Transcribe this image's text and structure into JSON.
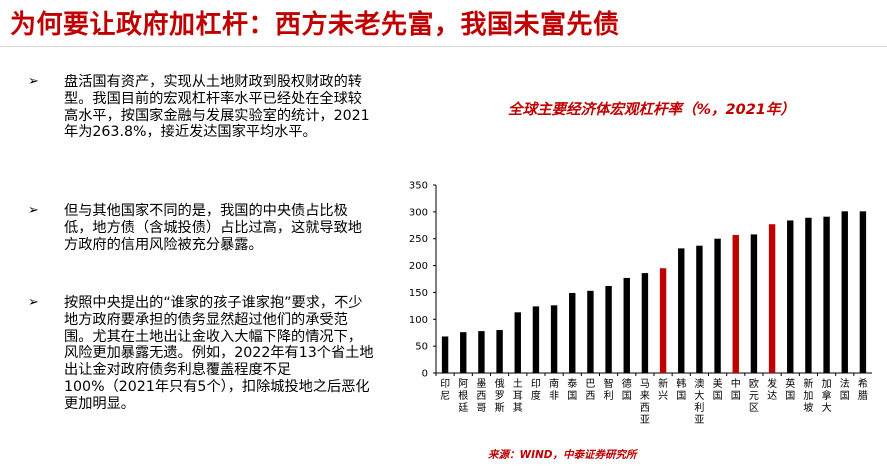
{
  "page": {
    "title": "为何要让政府加杠杆：西方未老先富，我国未富先债",
    "source": "来源：WIND，中泰证券研究所"
  },
  "bullets": [
    {
      "marker": "➢",
      "text": "盘活国有资产，实现从土地财政到股权财政的转型。我国目前的宏观杠杆率水平已经处在全球较高水平，按国家金融与发展实验室的统计，2021年为263.8%，接近发达国家平均水平。"
    },
    {
      "marker": "➢",
      "text": "但与其他国家不同的是，我国的中央债占比极低，地方债（含城投债）占比过高，这就导致地方政府的信用风险被充分暴露。"
    },
    {
      "marker": "➢",
      "text": "按照中央提出的“谁家的孩子谁家抱”要求，不少地方政府要承担的债务显然超过他们的承受范围。尤其在土地出让金收入大幅下降的情况下，风险更加暴露无遗。例如，2022年有13个省土地出让金对政府债务利息覆盖程度不足100%（2021年只有5个），扣除城投地之后恶化更加明显。"
    }
  ],
  "chart_data": {
    "type": "bar",
    "title": "全球主要经济体宏观杠杆率（%，2021年）",
    "categories": [
      "印尼",
      "阿根廷",
      "墨西哥",
      "俄罗斯",
      "土耳其",
      "印度",
      "南非",
      "泰国",
      "巴西",
      "智利",
      "德国",
      "马来西亚",
      "新兴",
      "韩国",
      "澳大利亚",
      "美国",
      "中国",
      "欧元区",
      "发达",
      "英国",
      "新加坡",
      "加拿大",
      "法国",
      "希腊"
    ],
    "values": [
      68,
      76,
      78,
      80,
      113,
      124,
      126,
      149,
      153,
      162,
      177,
      186,
      195,
      232,
      237,
      250,
      257,
      258,
      277,
      284,
      289,
      291,
      301,
      301
    ],
    "highlight": [
      "新兴",
      "中国",
      "发达"
    ],
    "ylim": [
      0,
      350
    ],
    "yticks": [
      0,
      50,
      100,
      150,
      200,
      250,
      300,
      350
    ],
    "colors": {
      "bar": "#000000",
      "highlight": "#c00000",
      "title": "#c00000"
    },
    "grid": false,
    "legend": "none"
  }
}
